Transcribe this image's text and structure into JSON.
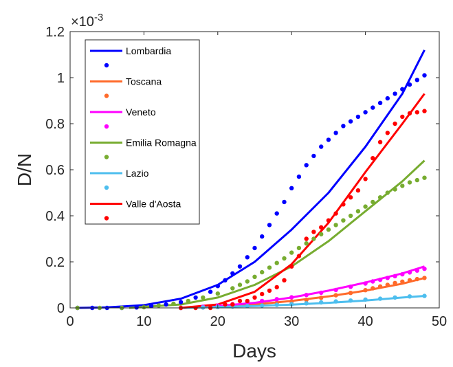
{
  "chart_data": {
    "type": "line",
    "title": "",
    "xlabel": "Days",
    "ylabel": "D/N",
    "y_multiplier": "×10",
    "y_multiplier_exp": "-3",
    "xlim": [
      0,
      50
    ],
    "ylim": [
      0,
      1.2
    ],
    "xticks": [
      "0",
      "10",
      "20",
      "30",
      "40",
      "50"
    ],
    "yticks": [
      "0",
      "0.2",
      "0.4",
      "0.6",
      "0.8",
      "1",
      "1.2"
    ],
    "grid": false,
    "legend_position": "top-left",
    "series": [
      {
        "name": "Lombardia",
        "color": "#0000ff",
        "fit": [
          [
            1,
            0
          ],
          [
            5,
            0.002
          ],
          [
            10,
            0.012
          ],
          [
            15,
            0.04
          ],
          [
            20,
            0.1
          ],
          [
            25,
            0.2
          ],
          [
            30,
            0.34
          ],
          [
            35,
            0.5
          ],
          [
            40,
            0.7
          ],
          [
            45,
            0.93
          ],
          [
            48,
            1.12
          ]
        ],
        "points": [
          [
            1,
            0
          ],
          [
            3,
            0
          ],
          [
            5,
            0
          ],
          [
            7,
            0
          ],
          [
            9,
            0.002
          ],
          [
            11,
            0.008
          ],
          [
            13,
            0.015
          ],
          [
            15,
            0.025
          ],
          [
            17,
            0.045
          ],
          [
            19,
            0.07
          ],
          [
            20,
            0.095
          ],
          [
            21,
            0.12
          ],
          [
            22,
            0.15
          ],
          [
            23,
            0.18
          ],
          [
            24,
            0.22
          ],
          [
            25,
            0.26
          ],
          [
            26,
            0.31
          ],
          [
            27,
            0.36
          ],
          [
            28,
            0.41
          ],
          [
            29,
            0.46
          ],
          [
            30,
            0.52
          ],
          [
            31,
            0.57
          ],
          [
            32,
            0.62
          ],
          [
            33,
            0.66
          ],
          [
            34,
            0.7
          ],
          [
            35,
            0.73
          ],
          [
            36,
            0.76
          ],
          [
            37,
            0.79
          ],
          [
            38,
            0.81
          ],
          [
            39,
            0.83
          ],
          [
            40,
            0.85
          ],
          [
            41,
            0.87
          ],
          [
            42,
            0.89
          ],
          [
            43,
            0.91
          ],
          [
            44,
            0.93
          ],
          [
            45,
            0.95
          ],
          [
            46,
            0.97
          ],
          [
            47,
            0.99
          ],
          [
            48,
            1.01
          ]
        ]
      },
      {
        "name": "Toscana",
        "color": "#ff6a2a",
        "fit": [
          [
            15,
            0
          ],
          [
            20,
            0.005
          ],
          [
            25,
            0.015
          ],
          [
            30,
            0.03
          ],
          [
            35,
            0.05
          ],
          [
            40,
            0.075
          ],
          [
            45,
            0.105
          ],
          [
            48,
            0.13
          ]
        ],
        "points": [
          [
            15,
            0
          ],
          [
            18,
            0.002
          ],
          [
            20,
            0.005
          ],
          [
            22,
            0.008
          ],
          [
            24,
            0.012
          ],
          [
            26,
            0.016
          ],
          [
            28,
            0.022
          ],
          [
            30,
            0.028
          ],
          [
            32,
            0.035
          ],
          [
            34,
            0.044
          ],
          [
            36,
            0.055
          ],
          [
            38,
            0.065
          ],
          [
            40,
            0.077
          ],
          [
            41,
            0.085
          ],
          [
            42,
            0.093
          ],
          [
            43,
            0.1
          ],
          [
            44,
            0.108
          ],
          [
            45,
            0.114
          ],
          [
            46,
            0.12
          ],
          [
            47,
            0.125
          ],
          [
            48,
            0.13
          ]
        ]
      },
      {
        "name": "Veneto",
        "color": "#ff00ff",
        "fit": [
          [
            15,
            0
          ],
          [
            20,
            0.008
          ],
          [
            25,
            0.022
          ],
          [
            30,
            0.045
          ],
          [
            35,
            0.075
          ],
          [
            40,
            0.11
          ],
          [
            45,
            0.15
          ],
          [
            48,
            0.18
          ]
        ],
        "points": [
          [
            15,
            0
          ],
          [
            18,
            0.005
          ],
          [
            20,
            0.01
          ],
          [
            22,
            0.016
          ],
          [
            24,
            0.024
          ],
          [
            26,
            0.03
          ],
          [
            28,
            0.038
          ],
          [
            30,
            0.046
          ],
          [
            32,
            0.056
          ],
          [
            34,
            0.066
          ],
          [
            36,
            0.078
          ],
          [
            38,
            0.092
          ],
          [
            40,
            0.106
          ],
          [
            41,
            0.115
          ],
          [
            42,
            0.122
          ],
          [
            43,
            0.13
          ],
          [
            44,
            0.138
          ],
          [
            45,
            0.146
          ],
          [
            46,
            0.154
          ],
          [
            47,
            0.162
          ],
          [
            48,
            0.17
          ]
        ]
      },
      {
        "name": "Emilia Romagna",
        "color": "#77ac30",
        "fit": [
          [
            8,
            0
          ],
          [
            15,
            0.015
          ],
          [
            20,
            0.045
          ],
          [
            25,
            0.1
          ],
          [
            30,
            0.18
          ],
          [
            35,
            0.29
          ],
          [
            40,
            0.42
          ],
          [
            45,
            0.55
          ],
          [
            48,
            0.64
          ]
        ],
        "points": [
          [
            1,
            0
          ],
          [
            4,
            0
          ],
          [
            7,
            0
          ],
          [
            10,
            0.003
          ],
          [
            12,
            0.01
          ],
          [
            14,
            0.018
          ],
          [
            16,
            0.03
          ],
          [
            18,
            0.045
          ],
          [
            20,
            0.062
          ],
          [
            22,
            0.085
          ],
          [
            23,
            0.1
          ],
          [
            24,
            0.115
          ],
          [
            25,
            0.135
          ],
          [
            26,
            0.155
          ],
          [
            27,
            0.175
          ],
          [
            28,
            0.195
          ],
          [
            29,
            0.215
          ],
          [
            30,
            0.24
          ],
          [
            31,
            0.26
          ],
          [
            32,
            0.28
          ],
          [
            33,
            0.3
          ],
          [
            34,
            0.32
          ],
          [
            35,
            0.34
          ],
          [
            36,
            0.36
          ],
          [
            37,
            0.38
          ],
          [
            38,
            0.4
          ],
          [
            39,
            0.42
          ],
          [
            40,
            0.44
          ],
          [
            41,
            0.46
          ],
          [
            42,
            0.48
          ],
          [
            43,
            0.5
          ],
          [
            44,
            0.515
          ],
          [
            45,
            0.53
          ],
          [
            46,
            0.545
          ],
          [
            47,
            0.555
          ],
          [
            48,
            0.565
          ]
        ]
      },
      {
        "name": "Lazio",
        "color": "#4dbeee",
        "fit": [
          [
            15,
            0
          ],
          [
            25,
            0.008
          ],
          [
            30,
            0.014
          ],
          [
            35,
            0.022
          ],
          [
            40,
            0.032
          ],
          [
            45,
            0.045
          ],
          [
            48,
            0.052
          ]
        ],
        "points": [
          [
            15,
            0
          ],
          [
            18,
            0.002
          ],
          [
            20,
            0.004
          ],
          [
            22,
            0.006
          ],
          [
            24,
            0.008
          ],
          [
            26,
            0.01
          ],
          [
            28,
            0.013
          ],
          [
            30,
            0.016
          ],
          [
            32,
            0.02
          ],
          [
            34,
            0.024
          ],
          [
            36,
            0.028
          ],
          [
            38,
            0.032
          ],
          [
            40,
            0.036
          ],
          [
            42,
            0.04
          ],
          [
            44,
            0.045
          ],
          [
            46,
            0.05
          ],
          [
            48,
            0.052
          ]
        ]
      },
      {
        "name": "Valle d'Aosta",
        "color": "#ff0000",
        "fit": [
          [
            15,
            0
          ],
          [
            20,
            0.015
          ],
          [
            25,
            0.07
          ],
          [
            30,
            0.19
          ],
          [
            35,
            0.37
          ],
          [
            40,
            0.59
          ],
          [
            45,
            0.8
          ],
          [
            48,
            0.93
          ]
        ],
        "points": [
          [
            15,
            0
          ],
          [
            17,
            0
          ],
          [
            19,
            0
          ],
          [
            21,
            0.015
          ],
          [
            22,
            0.015
          ],
          [
            23,
            0.03
          ],
          [
            24,
            0.03
          ],
          [
            25,
            0.045
          ],
          [
            26,
            0.06
          ],
          [
            27,
            0.075
          ],
          [
            28,
            0.09
          ],
          [
            29,
            0.12
          ],
          [
            30,
            0.18
          ],
          [
            31,
            0.225
          ],
          [
            32,
            0.3
          ],
          [
            33,
            0.33
          ],
          [
            34,
            0.35
          ],
          [
            35,
            0.38
          ],
          [
            36,
            0.41
          ],
          [
            37,
            0.45
          ],
          [
            38,
            0.48
          ],
          [
            39,
            0.51
          ],
          [
            40,
            0.56
          ],
          [
            41,
            0.65
          ],
          [
            42,
            0.72
          ],
          [
            43,
            0.76
          ],
          [
            44,
            0.8
          ],
          [
            45,
            0.83
          ],
          [
            46,
            0.845
          ],
          [
            47,
            0.85
          ],
          [
            48,
            0.855
          ]
        ]
      }
    ]
  }
}
